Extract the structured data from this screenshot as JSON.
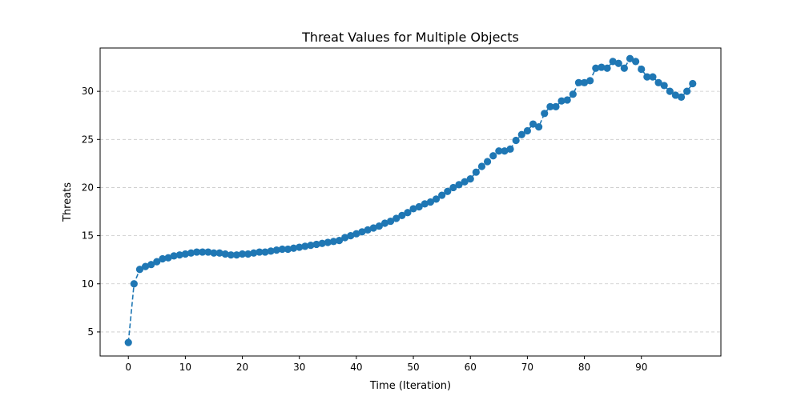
{
  "chart_data": {
    "type": "line",
    "title": "Threat Values for Multiple Objects",
    "xlabel": "Time (Iteration)",
    "ylabel": "Threats",
    "xlim": [
      -4.95,
      103.95
    ],
    "ylim": [
      2.5,
      34.5
    ],
    "xticks": [
      0,
      10,
      20,
      30,
      40,
      50,
      60,
      70,
      80,
      90
    ],
    "yticks": [
      5,
      10,
      15,
      20,
      25,
      30
    ],
    "grid": {
      "y": true,
      "x": false,
      "style": "dashed"
    },
    "line_style": "dashed",
    "marker": "circle",
    "series": [
      {
        "color": "#1f77b4",
        "x": [
          0,
          1,
          2,
          3,
          4,
          5,
          6,
          7,
          8,
          9,
          10,
          11,
          12,
          13,
          14,
          15,
          16,
          17,
          18,
          19,
          20,
          21,
          22,
          23,
          24,
          25,
          26,
          27,
          28,
          29,
          30,
          31,
          32,
          33,
          34,
          35,
          36,
          37,
          38,
          39,
          40,
          41,
          42,
          43,
          44,
          45,
          46,
          47,
          48,
          49,
          50,
          51,
          52,
          53,
          54,
          55,
          56,
          57,
          58,
          59,
          60,
          61,
          62,
          63,
          64,
          65,
          66,
          67,
          68,
          69,
          70,
          71,
          72,
          73,
          74,
          75,
          76,
          77,
          78,
          79,
          80,
          81,
          82,
          83,
          84,
          85,
          86,
          87,
          88,
          89,
          90,
          91,
          92,
          93,
          94,
          95,
          96,
          97,
          98,
          99
        ],
        "values": [
          3.9,
          10.0,
          11.5,
          11.8,
          12.0,
          12.3,
          12.6,
          12.7,
          12.9,
          13.0,
          13.1,
          13.2,
          13.3,
          13.3,
          13.3,
          13.2,
          13.2,
          13.1,
          13.0,
          13.0,
          13.1,
          13.1,
          13.2,
          13.3,
          13.3,
          13.4,
          13.5,
          13.6,
          13.6,
          13.7,
          13.8,
          13.9,
          14.0,
          14.1,
          14.2,
          14.3,
          14.4,
          14.5,
          14.8,
          15.0,
          15.2,
          15.4,
          15.6,
          15.8,
          16.0,
          16.3,
          16.5,
          16.8,
          17.1,
          17.4,
          17.8,
          18.0,
          18.3,
          18.5,
          18.8,
          19.2,
          19.6,
          20.0,
          20.3,
          20.6,
          20.9,
          21.6,
          22.2,
          22.7,
          23.3,
          23.8,
          23.8,
          24.0,
          24.9,
          25.5,
          25.9,
          26.6,
          26.3,
          27.7,
          28.4,
          28.4,
          29.0,
          29.1,
          29.7,
          30.9,
          30.9,
          31.1,
          32.4,
          32.5,
          32.4,
          33.1,
          32.9,
          32.4,
          33.4,
          33.1,
          32.3,
          31.5,
          31.5,
          30.9,
          30.6,
          30.0,
          29.6,
          29.4,
          30.0,
          30.8
        ]
      }
    ]
  }
}
